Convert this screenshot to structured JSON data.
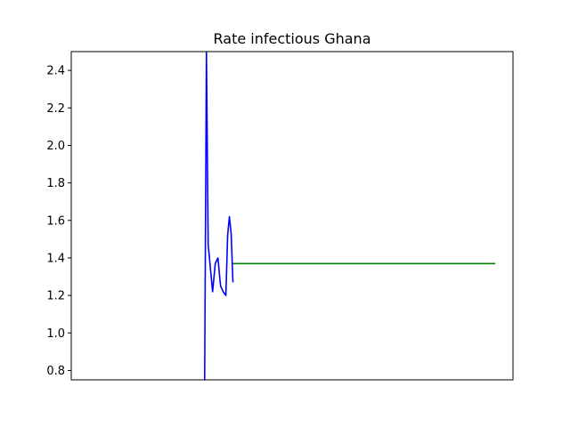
{
  "chart_data": {
    "type": "line",
    "title": "Rate infectious Ghana",
    "xlabel": "",
    "ylabel": "",
    "x_ticks_visible": false,
    "grid": false,
    "legend": "none",
    "xlim": [
      0,
      100
    ],
    "ylim": [
      0.75,
      2.5
    ],
    "yticks": [
      "0.8",
      "1.0",
      "1.2",
      "1.4",
      "1.6",
      "1.8",
      "2.0",
      "2.2",
      "2.4"
    ],
    "series": [
      {
        "color": "#0000ff",
        "x": [
          30.2,
          30.6,
          31.0,
          31.4,
          32.0,
          32.6,
          33.2,
          33.8,
          34.4,
          35.0,
          35.4,
          35.8,
          36.2,
          36.6
        ],
        "y": [
          0.75,
          2.5,
          1.47,
          1.37,
          1.22,
          1.37,
          1.4,
          1.25,
          1.22,
          1.2,
          1.52,
          1.62,
          1.53,
          1.27
        ]
      },
      {
        "color": "#008000",
        "x": [
          36.6,
          96.0
        ],
        "y": [
          1.37,
          1.37
        ]
      }
    ]
  }
}
